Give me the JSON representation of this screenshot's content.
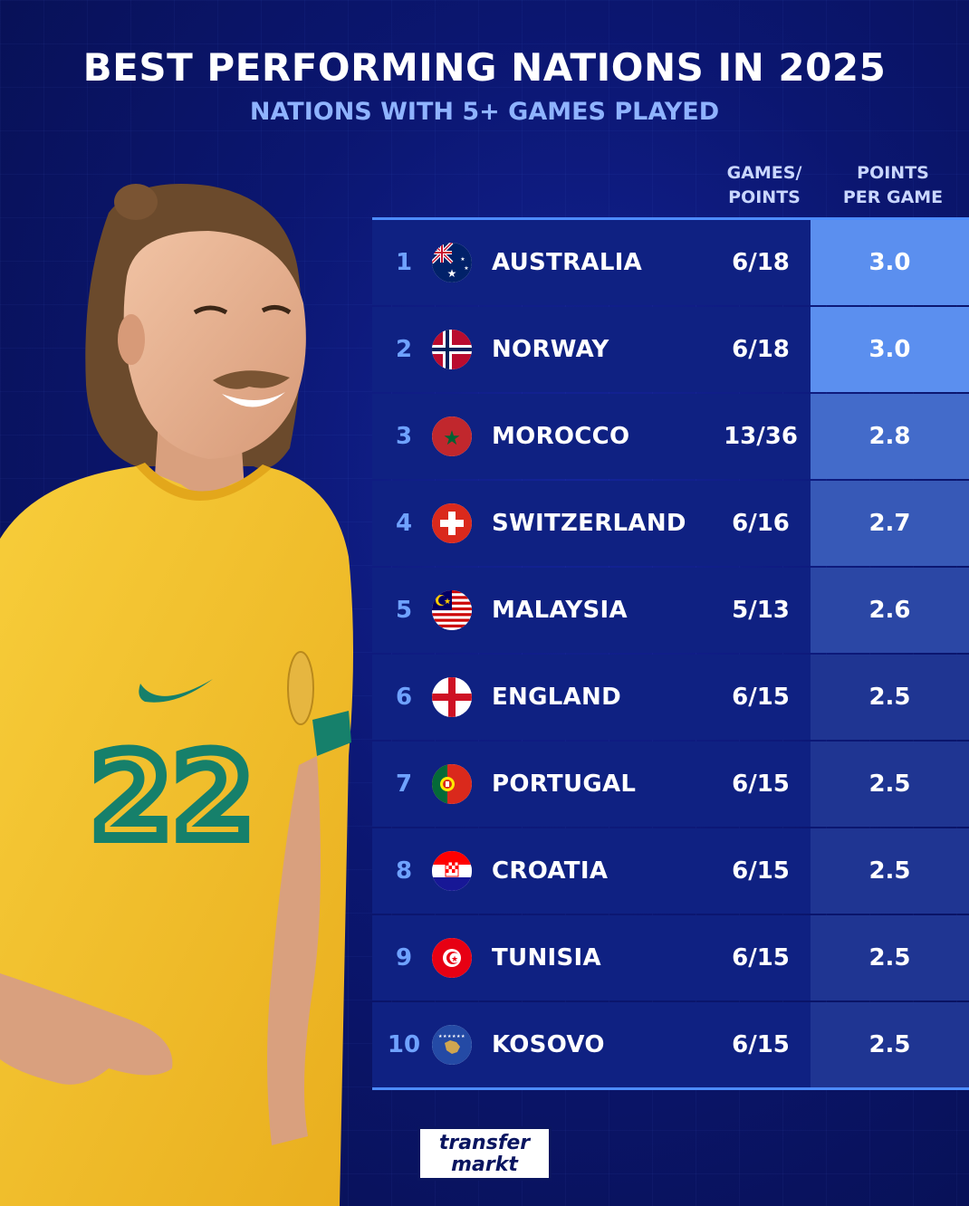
{
  "header": {
    "title": "BEST PERFORMING NATIONS IN 2025",
    "subtitle": "NATIONS WITH 5+ GAMES PLAYED"
  },
  "columns": {
    "games_points_line1": "GAMES/",
    "games_points_line2": "POINTS",
    "ppg_line1": "POINTS",
    "ppg_line2": "PER GAME"
  },
  "player": {
    "shirt_number": "22"
  },
  "logo": {
    "line1": "transfer",
    "line2": "markt"
  },
  "colors": {
    "background": "#0b1670",
    "row_bg": "#0f2182",
    "accent": "#4d8cff",
    "rank_text": "#6fa2ff",
    "ppg_high": "#5b8fef",
    "ppg_low": "#1f3592",
    "shirt": "#f5c22c",
    "shirt_trim": "#16806b"
  },
  "chart_data": {
    "type": "table",
    "title": "BEST PERFORMING NATIONS IN 2025",
    "subtitle": "NATIONS WITH 5+ GAMES PLAYED",
    "columns": [
      "",
      "",
      "",
      "GAMES/ POINTS",
      "POINTS PER GAME"
    ],
    "rows": [
      {
        "rank": "1",
        "nation": "AUSTRALIA",
        "flag": "australia-flag-icon",
        "games_points": "6/18",
        "ppg": "3.0",
        "ppg_value": 3.0
      },
      {
        "rank": "2",
        "nation": "NORWAY",
        "flag": "norway-flag-icon",
        "games_points": "6/18",
        "ppg": "3.0",
        "ppg_value": 3.0
      },
      {
        "rank": "3",
        "nation": "MOROCCO",
        "flag": "morocco-flag-icon",
        "games_points": "13/36",
        "ppg": "2.8",
        "ppg_value": 2.8
      },
      {
        "rank": "4",
        "nation": "SWITZERLAND",
        "flag": "switzerland-flag-icon",
        "games_points": "6/16",
        "ppg": "2.7",
        "ppg_value": 2.7
      },
      {
        "rank": "5",
        "nation": "MALAYSIA",
        "flag": "malaysia-flag-icon",
        "games_points": "5/13",
        "ppg": "2.6",
        "ppg_value": 2.6
      },
      {
        "rank": "6",
        "nation": "ENGLAND",
        "flag": "england-flag-icon",
        "games_points": "6/15",
        "ppg": "2.5",
        "ppg_value": 2.5
      },
      {
        "rank": "7",
        "nation": "PORTUGAL",
        "flag": "portugal-flag-icon",
        "games_points": "6/15",
        "ppg": "2.5",
        "ppg_value": 2.5
      },
      {
        "rank": "8",
        "nation": "CROATIA",
        "flag": "croatia-flag-icon",
        "games_points": "6/15",
        "ppg": "2.5",
        "ppg_value": 2.5
      },
      {
        "rank": "9",
        "nation": "TUNISIA",
        "flag": "tunisia-flag-icon",
        "games_points": "6/15",
        "ppg": "2.5",
        "ppg_value": 2.5
      },
      {
        "rank": "10",
        "nation": "KOSOVO",
        "flag": "kosovo-flag-icon",
        "games_points": "6/15",
        "ppg": "2.5",
        "ppg_value": 2.5
      }
    ]
  }
}
